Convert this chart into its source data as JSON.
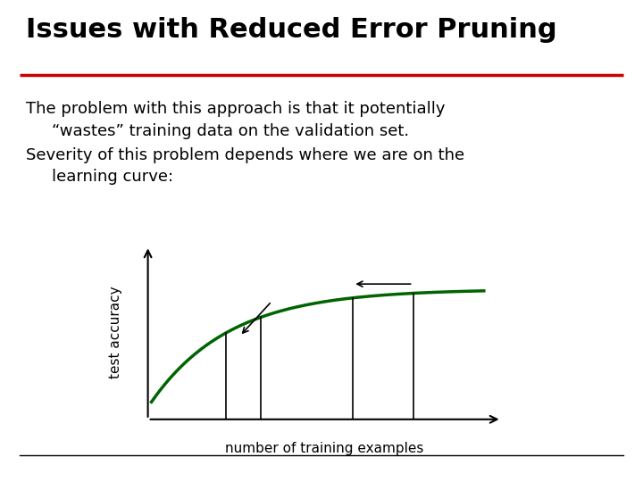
{
  "title": "Issues with Reduced Error Pruning",
  "title_color": "#000000",
  "title_fontsize": 22,
  "red_line_color": "#cc0000",
  "bg_color": "#ffffff",
  "body_text_line1": "The problem with this approach is that it potentially",
  "body_text_line2": "“wastes” training data on the validation set.",
  "body_text_line3": "Severity of this problem depends where we are on the",
  "body_text_line4": "learning curve:",
  "body_fontsize": 13,
  "curve_color": "#006400",
  "curve_linewidth": 2.5,
  "axis_color": "#000000",
  "xlabel": "number of training examples",
  "ylabel": "test accuracy",
  "bottom_line_color": "#000000"
}
